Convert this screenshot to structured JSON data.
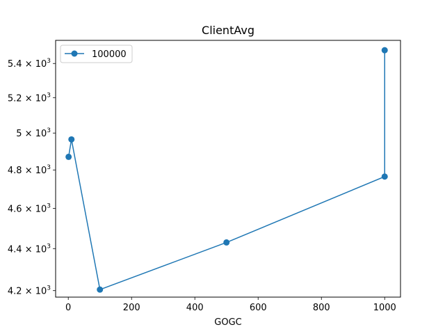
{
  "chart_data": {
    "type": "line",
    "title": "ClientAvg",
    "xlabel": "GOGC",
    "ylabel": "",
    "yscale": "log",
    "x": [
      1,
      10,
      100,
      500,
      1000,
      1000
    ],
    "series": [
      {
        "name": "100000",
        "color": "#1f77b4",
        "marker": "circle",
        "values": [
          4870,
          4965,
          4205,
          4430,
          4765,
          5480
        ]
      }
    ],
    "xlim": [
      -40,
      1050
    ],
    "ylim": [
      4170,
      5540
    ],
    "xticks": [
      {
        "value": 0,
        "label": "0"
      },
      {
        "value": 200,
        "label": "200"
      },
      {
        "value": 400,
        "label": "400"
      },
      {
        "value": 600,
        "label": "600"
      },
      {
        "value": 800,
        "label": "800"
      },
      {
        "value": 1000,
        "label": "1000"
      }
    ],
    "yticks": [
      {
        "value": 4200,
        "mantissa": "4.2",
        "base": "10",
        "exp": "3"
      },
      {
        "value": 4400,
        "mantissa": "4.4",
        "base": "10",
        "exp": "3"
      },
      {
        "value": 4600,
        "mantissa": "4.6",
        "base": "10",
        "exp": "3"
      },
      {
        "value": 4800,
        "mantissa": "4.8",
        "base": "10",
        "exp": "3"
      },
      {
        "value": 5000,
        "mantissa": "5",
        "base": "10",
        "exp": "3"
      },
      {
        "value": 5200,
        "mantissa": "5.2",
        "base": "10",
        "exp": "3"
      },
      {
        "value": 5400,
        "mantissa": "5.4",
        "base": "10",
        "exp": "3"
      }
    ],
    "legend": {
      "placement": "top-left"
    },
    "grid": false
  }
}
